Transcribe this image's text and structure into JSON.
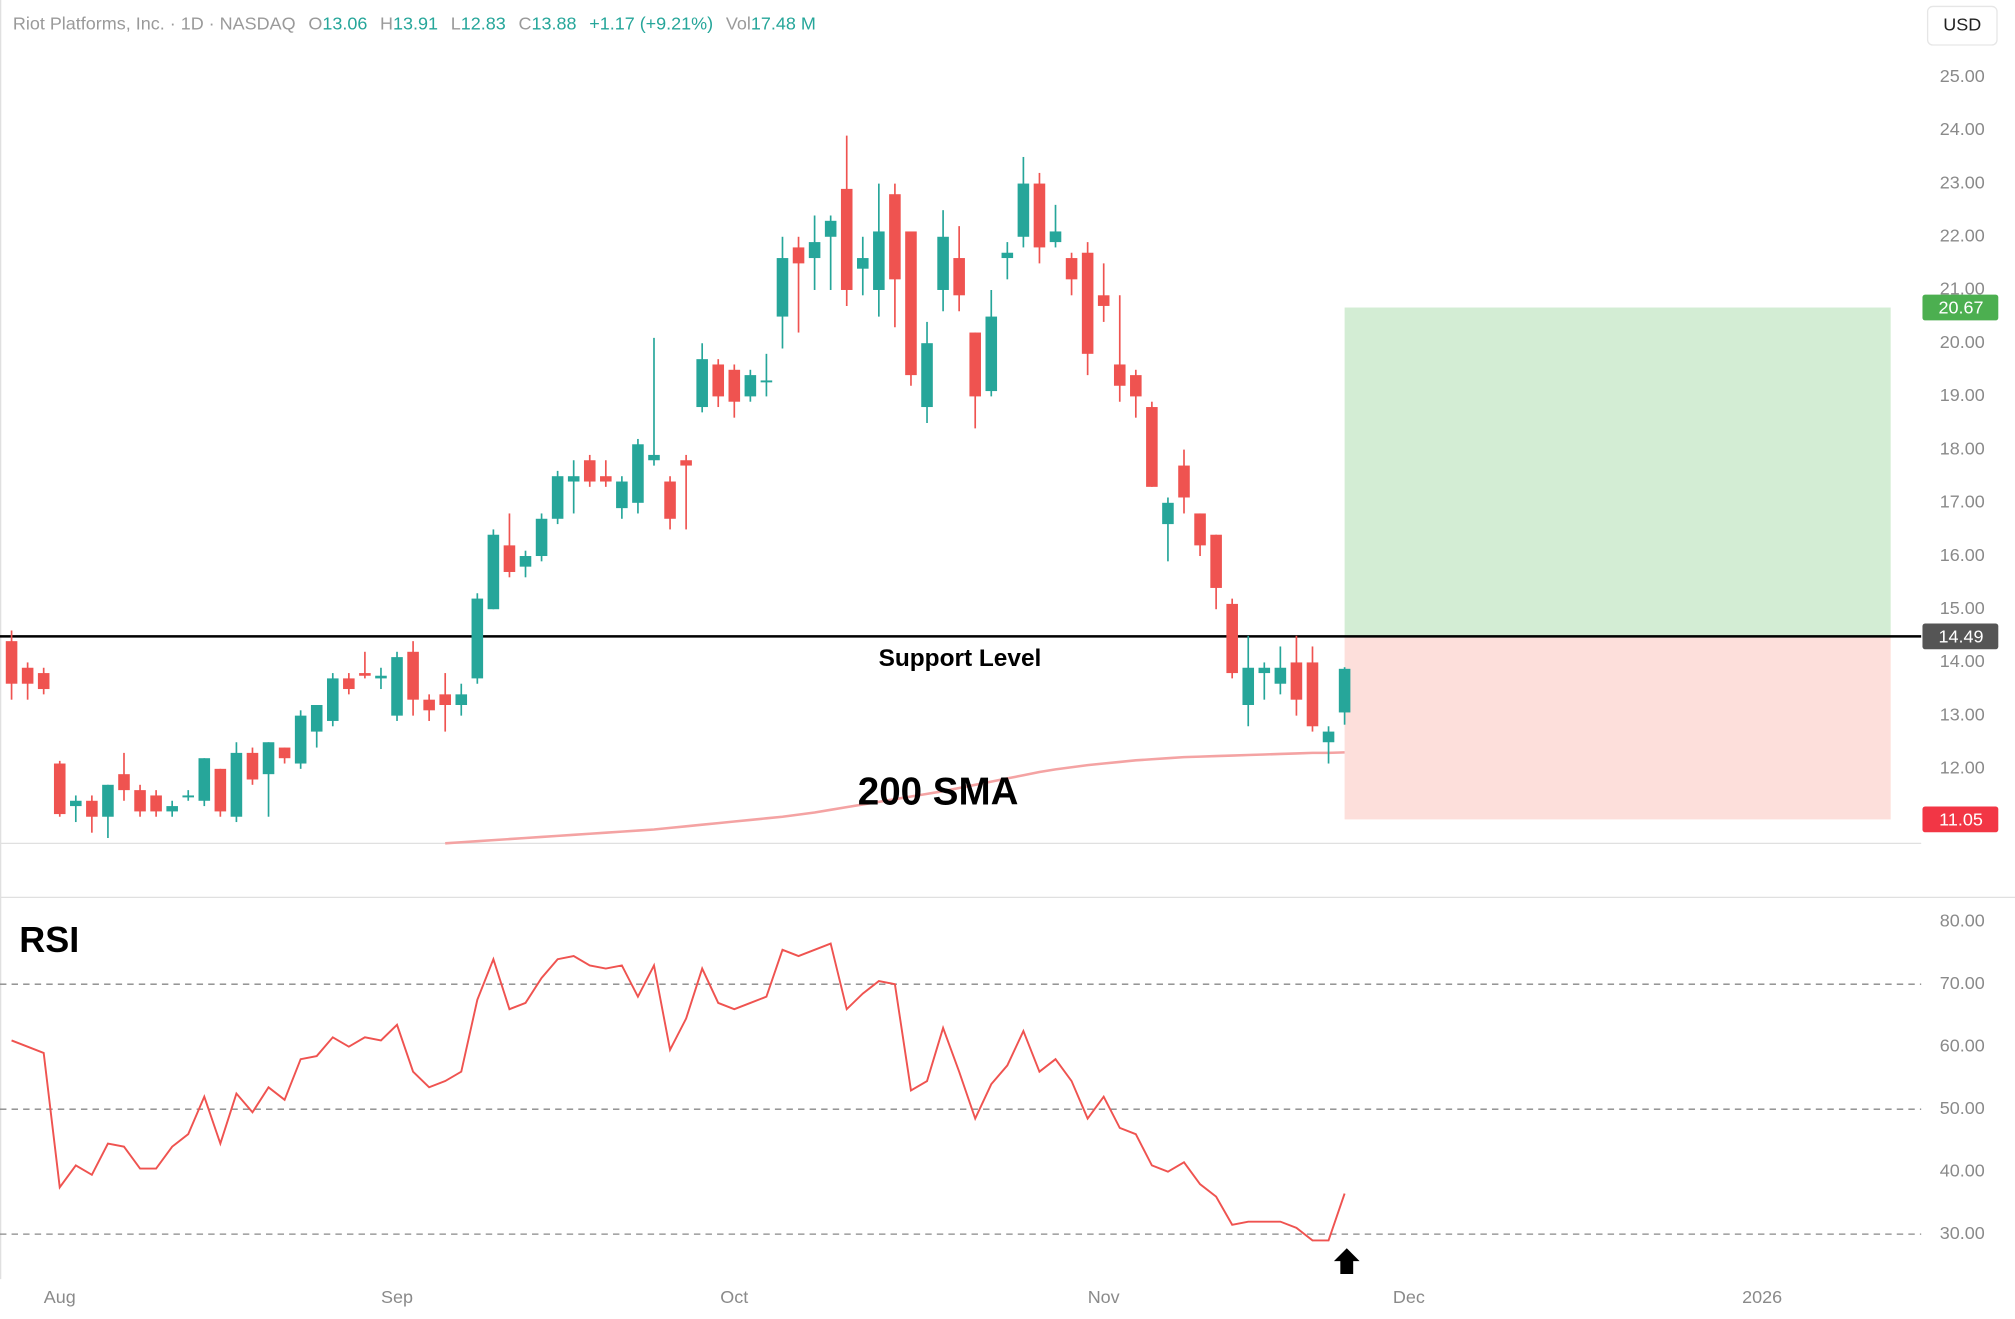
{
  "header": {
    "symbol": "Riot Platforms, Inc. · 1D · NASDAQ",
    "stats": [
      {
        "key": "O",
        "value": "13.06"
      },
      {
        "key": "H",
        "value": "13.91"
      },
      {
        "key": "L",
        "value": "12.83"
      },
      {
        "key": "C",
        "value": "13.88"
      }
    ],
    "change": "+1.17 (+9.21%)",
    "vol_key": "Vol",
    "vol": "17.48 M"
  },
  "chart_data": [
    {
      "type": "candlestick",
      "currency": "USD",
      "up_color": "#26a69a",
      "down_color": "#ef5350",
      "xlim": [
        -0.72,
        118.9
      ],
      "xticks": [
        {
          "value": 3,
          "label": "Aug"
        },
        {
          "value": 24,
          "label": "Sep"
        },
        {
          "value": 45,
          "label": "Oct"
        },
        {
          "value": 68,
          "label": "Nov"
        },
        {
          "value": 87,
          "label": "Dec"
        },
        {
          "value": 109,
          "label": "2026"
        }
      ],
      "ylim": [
        10.6,
        26.45
      ],
      "yticks": [
        {
          "value": 12,
          "label": "12.00"
        },
        {
          "value": 13,
          "label": "13.00"
        },
        {
          "value": 14,
          "label": "14.00"
        },
        {
          "value": 15,
          "label": "15.00"
        },
        {
          "value": 16,
          "label": "16.00"
        },
        {
          "value": 17,
          "label": "17.00"
        },
        {
          "value": 18,
          "label": "18.00"
        },
        {
          "value": 19,
          "label": "19.00"
        },
        {
          "value": 20,
          "label": "20.00"
        },
        {
          "value": 21,
          "label": "21.00"
        },
        {
          "value": 22,
          "label": "22.00"
        },
        {
          "value": 23,
          "label": "23.00"
        },
        {
          "value": 24,
          "label": "24.00"
        },
        {
          "value": 25,
          "label": "25.00"
        }
      ],
      "open": [
        14.4,
        13.9,
        13.8,
        12.1,
        11.3,
        11.4,
        11.1,
        11.9,
        11.6,
        11.5,
        11.2,
        11.5,
        11.4,
        12.0,
        11.1,
        12.3,
        11.9,
        12.4,
        12.1,
        12.7,
        12.9,
        13.7,
        13.8,
        13.7,
        13.0,
        14.2,
        13.3,
        13.4,
        13.2,
        13.7,
        15.0,
        16.2,
        15.8,
        16.0,
        16.7,
        17.4,
        17.8,
        17.5,
        16.9,
        17.0,
        17.8,
        17.4,
        17.8,
        18.8,
        19.6,
        19.5,
        19.0,
        19.3,
        20.5,
        21.8,
        21.6,
        22.0,
        22.9,
        21.4,
        21.0,
        22.8,
        22.1,
        18.8,
        21.0,
        21.6,
        20.2,
        19.1,
        21.6,
        22.0,
        23.0,
        21.9,
        21.6,
        21.7,
        20.9,
        19.6,
        19.4,
        18.8,
        16.6,
        17.7,
        16.8,
        16.4,
        15.1,
        13.2,
        13.8,
        13.6,
        14.0,
        14.0,
        12.5,
        13.06
      ],
      "high": [
        14.6,
        14.0,
        13.9,
        12.15,
        11.5,
        11.5,
        11.7,
        12.3,
        11.7,
        11.6,
        11.4,
        11.6,
        12.2,
        12.0,
        12.5,
        12.4,
        12.5,
        12.4,
        13.1,
        13.2,
        13.8,
        13.8,
        14.2,
        13.9,
        14.2,
        14.4,
        13.4,
        13.8,
        13.6,
        15.3,
        16.5,
        16.8,
        16.1,
        16.8,
        17.6,
        17.8,
        17.9,
        17.8,
        17.5,
        18.2,
        20.1,
        17.5,
        17.9,
        20.0,
        19.7,
        19.6,
        19.5,
        19.8,
        22.0,
        22.0,
        22.4,
        22.4,
        23.9,
        22.0,
        23.0,
        23.0,
        22.1,
        20.4,
        22.5,
        22.2,
        20.2,
        21.0,
        21.9,
        23.5,
        23.2,
        22.6,
        21.7,
        21.9,
        21.5,
        20.9,
        19.5,
        18.9,
        17.1,
        18.0,
        16.8,
        16.4,
        15.2,
        14.5,
        14.0,
        14.3,
        14.5,
        14.3,
        12.8,
        13.91
      ],
      "low": [
        13.3,
        13.3,
        13.4,
        11.1,
        11.0,
        10.8,
        10.7,
        11.4,
        11.1,
        11.1,
        11.1,
        11.4,
        11.3,
        11.1,
        11.0,
        11.7,
        11.1,
        12.1,
        12.0,
        12.4,
        12.8,
        13.4,
        13.7,
        13.5,
        12.9,
        13.0,
        12.9,
        12.7,
        13.0,
        13.6,
        15.0,
        15.6,
        15.6,
        15.9,
        16.6,
        16.8,
        17.3,
        17.3,
        16.7,
        16.8,
        17.7,
        16.5,
        16.5,
        18.7,
        18.8,
        18.6,
        18.9,
        19.0,
        19.9,
        20.2,
        21.0,
        21.0,
        20.7,
        20.9,
        20.5,
        20.3,
        19.2,
        18.5,
        20.6,
        20.6,
        18.4,
        19.0,
        21.2,
        21.8,
        21.5,
        21.8,
        20.9,
        19.4,
        20.4,
        18.9,
        18.6,
        17.3,
        15.9,
        16.8,
        16.0,
        15.0,
        13.7,
        12.8,
        13.3,
        13.4,
        13.0,
        12.7,
        12.1,
        12.83
      ],
      "close": [
        13.6,
        13.6,
        13.5,
        11.15,
        11.4,
        11.1,
        11.7,
        11.6,
        11.2,
        11.2,
        11.3,
        11.5,
        12.2,
        11.2,
        12.3,
        11.8,
        12.5,
        12.2,
        13.0,
        13.2,
        13.7,
        13.5,
        13.75,
        13.75,
        14.1,
        13.3,
        13.1,
        13.2,
        13.4,
        15.2,
        16.4,
        15.7,
        16.0,
        16.7,
        17.5,
        17.5,
        17.4,
        17.4,
        17.4,
        18.1,
        17.9,
        16.7,
        17.7,
        19.7,
        19.0,
        18.9,
        19.4,
        19.3,
        21.6,
        21.5,
        21.9,
        22.3,
        21.0,
        21.6,
        22.1,
        21.2,
        19.4,
        20.0,
        22.0,
        20.9,
        19.0,
        20.5,
        21.7,
        23.0,
        21.8,
        22.1,
        21.2,
        19.8,
        20.7,
        19.2,
        19.0,
        17.3,
        17.0,
        17.1,
        16.2,
        15.4,
        13.8,
        13.9,
        13.9,
        13.9,
        13.3,
        12.8,
        12.7,
        13.88
      ],
      "sma": {
        "name": "200 SMA",
        "color": "#f4a3a3",
        "values": [
          null,
          null,
          null,
          null,
          null,
          null,
          null,
          null,
          null,
          null,
          null,
          null,
          null,
          null,
          null,
          null,
          null,
          null,
          null,
          null,
          null,
          null,
          null,
          null,
          null,
          null,
          null,
          10.6,
          10.62,
          10.64,
          10.66,
          10.68,
          10.7,
          10.72,
          10.74,
          10.76,
          10.78,
          10.8,
          10.82,
          10.84,
          10.86,
          10.89,
          10.92,
          10.95,
          10.98,
          11.01,
          11.04,
          11.07,
          11.1,
          11.14,
          11.18,
          11.23,
          11.28,
          11.33,
          11.38,
          11.43,
          11.48,
          11.53,
          11.58,
          11.64,
          11.7,
          11.76,
          11.82,
          11.88,
          11.94,
          11.99,
          12.03,
          12.07,
          12.1,
          12.13,
          12.16,
          12.18,
          12.2,
          12.22,
          12.23,
          12.24,
          12.25,
          12.26,
          12.27,
          12.28,
          12.29,
          12.3,
          12.3,
          12.31
        ]
      },
      "support": {
        "label": "Support Level",
        "value": 14.49
      },
      "position": {
        "entry": 14.49,
        "target": 20.67,
        "stop": 11.05,
        "x_start": 83,
        "x_end": 117
      }
    },
    {
      "type": "line",
      "title": "RSI",
      "color": "#ef5350",
      "ylim": [
        22.8,
        83.9
      ],
      "yticks": [
        {
          "value": 30,
          "label": "30.00"
        },
        {
          "value": 40,
          "label": "40.00"
        },
        {
          "value": 50,
          "label": "50.00"
        },
        {
          "value": 60,
          "label": "60.00"
        },
        {
          "value": 70,
          "label": "70.00"
        },
        {
          "value": 80,
          "label": "80.00"
        }
      ],
      "levels": [
        70,
        50,
        30
      ],
      "values": [
        61,
        60,
        59,
        37.5,
        41,
        39.5,
        44.5,
        44,
        40.5,
        40.5,
        44,
        46,
        52,
        44.5,
        52.5,
        49.5,
        53.5,
        51.5,
        58,
        58.5,
        61.5,
        60,
        61.5,
        61,
        63.5,
        56,
        53.5,
        54.5,
        56,
        67.5,
        74,
        66,
        67,
        71,
        74,
        74.5,
        73,
        72.5,
        73,
        68,
        73,
        59.5,
        64.5,
        72.5,
        67,
        66,
        67,
        68,
        75.5,
        74.5,
        75.5,
        76.5,
        66,
        68.5,
        70.5,
        70,
        53,
        54.5,
        63,
        56,
        48.5,
        54,
        57,
        62.5,
        56,
        58,
        54.5,
        48.5,
        52,
        47,
        46,
        41,
        40,
        41.5,
        38,
        36,
        31.5,
        32,
        32,
        32,
        31,
        29,
        29,
        36.5
      ]
    }
  ]
}
